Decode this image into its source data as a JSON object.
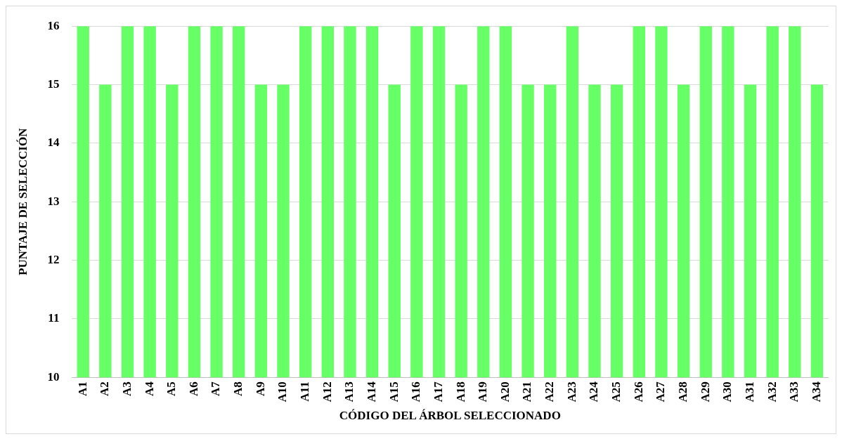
{
  "chart_data": {
    "type": "bar",
    "xlabel": "CÓDIGO DEL ÁRBOL SELECCIONADO",
    "ylabel": "PUNTAJE DE SELECCIÓN",
    "categories": [
      "A1",
      "A2",
      "A3",
      "A4",
      "A5",
      "A6",
      "A7",
      "A8",
      "A9",
      "A10",
      "A11",
      "A12",
      "A13",
      "A14",
      "A15",
      "A16",
      "A17",
      "A18",
      "A19",
      "A20",
      "A21",
      "A22",
      "A23",
      "A24",
      "A25",
      "A26",
      "A27",
      "A28",
      "A29",
      "A30",
      "A31",
      "A32",
      "A33",
      "A34"
    ],
    "values": [
      16,
      15,
      16,
      16,
      15,
      16,
      16,
      16,
      15,
      15,
      16,
      16,
      16,
      16,
      15,
      16,
      16,
      15,
      16,
      16,
      15,
      15,
      16,
      15,
      15,
      16,
      16,
      15,
      16,
      16,
      15,
      16,
      16,
      15
    ],
    "color": "#66ff66",
    "ylim": [
      10,
      16
    ],
    "yticks": [
      10,
      11,
      12,
      13,
      14,
      15,
      16
    ],
    "grid": "y",
    "legend": false
  }
}
